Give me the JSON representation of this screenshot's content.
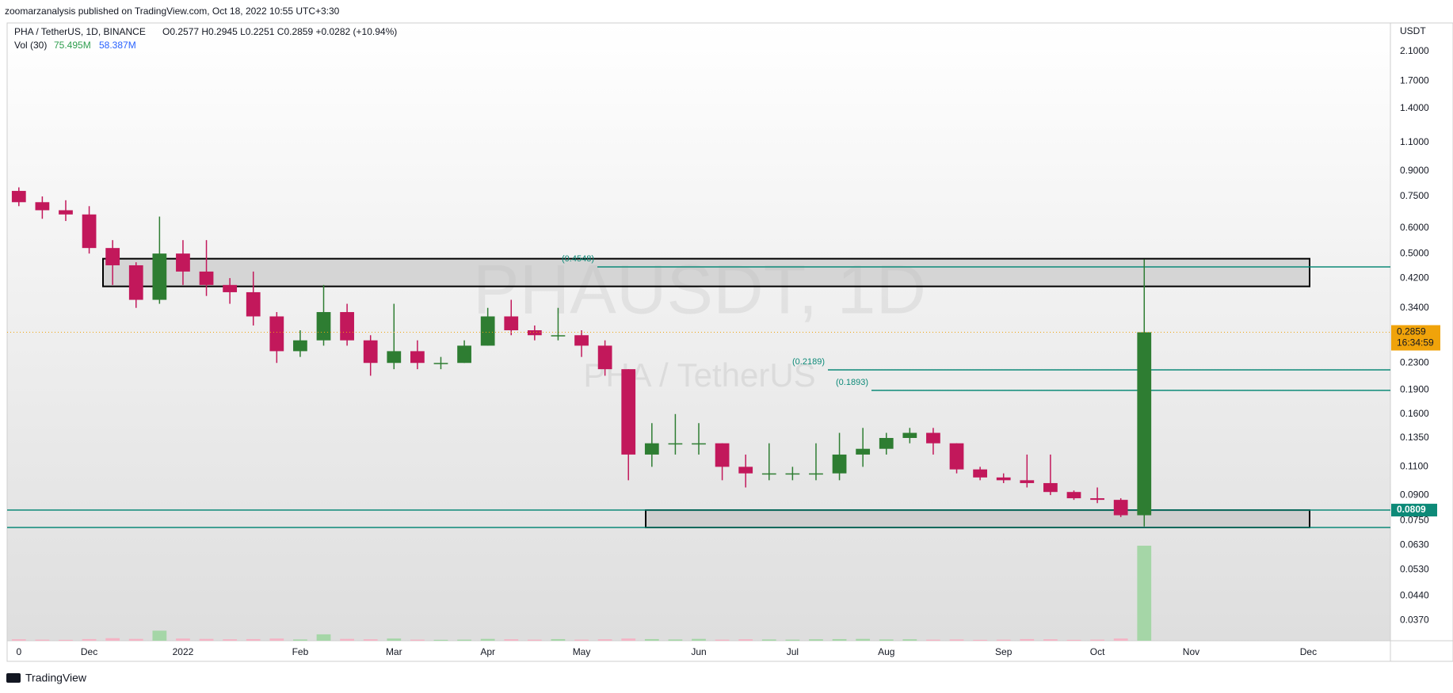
{
  "header": {
    "publisher": "zoomarzanalysis published on TradingView.com, Oct 18, 2022 10:55 UTC+3:30"
  },
  "footer": {
    "brand": "TradingView"
  },
  "chart_data": {
    "type": "candlestick",
    "legend": {
      "symbol": "PHA / TetherUS, 1D, BINANCE",
      "ohlc": "O0.2577 H0.2945 L0.2251 C0.2859 +0.0282 (+10.94%)"
    },
    "volume_legend": {
      "name": "Vol (30)",
      "volume": "75.495M",
      "average": "58.387M"
    },
    "watermark": {
      "symbol": "PHAUSDT, 1D",
      "name": "PHA / TetherUS"
    },
    "axis_unit": "USDT",
    "countdown": "16:34:59",
    "log_scale": true,
    "grid": false,
    "up_color": "#2e7d32",
    "down_color": "#c2185b",
    "volume_up_color": "#a5d6a7",
    "volume_down_color": "#f4b3c4",
    "level_color": "#0d8a78",
    "last_price_color": "#f0a30a",
    "categories": [
      "0",
      null,
      null,
      "Dec",
      null,
      null,
      null,
      "2022",
      null,
      null,
      null,
      null,
      "Feb",
      null,
      null,
      null,
      "Mar",
      null,
      null,
      null,
      "Apr",
      null,
      null,
      null,
      "May",
      null,
      null,
      null,
      null,
      "Jun",
      null,
      null,
      null,
      "Jul",
      null,
      null,
      null,
      "Aug",
      null,
      null,
      null,
      null,
      "Sep",
      null,
      null,
      null,
      "Oct",
      null,
      null,
      null,
      "Nov",
      null,
      null,
      null,
      null,
      "Dec",
      null,
      null,
      null
    ],
    "open": [
      0.78,
      0.72,
      0.68,
      0.66,
      0.52,
      0.46,
      0.36,
      0.5,
      0.44,
      0.4,
      0.38,
      0.32,
      0.25,
      0.27,
      0.33,
      0.27,
      0.23,
      0.25,
      0.23,
      0.23,
      0.26,
      0.32,
      0.29,
      0.28,
      0.28,
      0.26,
      0.22,
      0.12,
      0.13,
      0.13,
      0.13,
      0.11,
      0.105,
      0.105,
      0.105,
      0.105,
      0.12,
      0.125,
      0.135,
      0.14,
      0.13,
      0.108,
      0.102,
      0.1,
      0.098,
      0.092,
      0.088,
      0.087,
      0.078,
      null,
      null,
      null,
      null,
      null,
      null,
      null,
      null,
      null,
      null
    ],
    "high": [
      0.8,
      0.75,
      0.73,
      0.7,
      0.55,
      0.47,
      0.65,
      0.55,
      0.55,
      0.42,
      0.44,
      0.33,
      0.29,
      0.4,
      0.35,
      0.28,
      0.35,
      0.27,
      0.24,
      0.27,
      0.34,
      0.36,
      0.3,
      0.34,
      0.29,
      0.27,
      0.22,
      0.15,
      0.16,
      0.15,
      0.13,
      0.12,
      0.13,
      0.11,
      0.13,
      0.14,
      0.145,
      0.14,
      0.145,
      0.145,
      0.13,
      0.11,
      0.105,
      0.12,
      0.12,
      0.093,
      0.095,
      0.088,
      0.48,
      null,
      null,
      null,
      null,
      null,
      null,
      null,
      null,
      null,
      null
    ],
    "low": [
      0.7,
      0.64,
      0.63,
      0.5,
      0.4,
      0.34,
      0.35,
      0.4,
      0.37,
      0.35,
      0.3,
      0.23,
      0.24,
      0.26,
      0.26,
      0.21,
      0.22,
      0.22,
      0.22,
      0.23,
      0.26,
      0.28,
      0.27,
      0.27,
      0.24,
      0.21,
      0.1,
      0.11,
      0.12,
      0.12,
      0.1,
      0.095,
      0.1,
      0.1,
      0.1,
      0.1,
      0.11,
      0.12,
      0.13,
      0.12,
      0.105,
      0.1,
      0.098,
      0.095,
      0.09,
      0.087,
      0.085,
      0.077,
      0.072,
      null,
      null,
      null,
      null,
      null,
      null,
      null,
      null,
      null,
      null
    ],
    "close": [
      0.72,
      0.68,
      0.66,
      0.52,
      0.46,
      0.36,
      0.5,
      0.44,
      0.4,
      0.38,
      0.32,
      0.25,
      0.27,
      0.33,
      0.27,
      0.23,
      0.25,
      0.23,
      0.23,
      0.26,
      0.32,
      0.29,
      0.28,
      0.28,
      0.26,
      0.22,
      0.12,
      0.13,
      0.13,
      0.13,
      0.11,
      0.105,
      0.105,
      0.105,
      0.105,
      0.12,
      0.125,
      0.135,
      0.14,
      0.13,
      0.108,
      0.102,
      0.1,
      0.098,
      0.092,
      0.088,
      0.087,
      0.078,
      0.2859,
      null,
      null,
      null,
      null,
      null,
      null,
      null,
      null,
      null,
      null
    ],
    "volume": [
      8,
      6,
      5,
      9,
      14,
      10,
      55,
      12,
      10,
      8,
      9,
      12,
      7,
      35,
      10,
      8,
      12,
      6,
      5,
      6,
      10,
      8,
      6,
      9,
      6,
      8,
      12,
      9,
      7,
      10,
      6,
      8,
      7,
      6,
      8,
      9,
      10,
      7,
      8,
      6,
      7,
      5,
      6,
      9,
      8,
      5,
      6,
      12,
      520,
      null,
      null,
      null,
      null,
      null,
      null,
      null,
      null,
      null,
      null
    ],
    "ylim": [
      0.032,
      2.57
    ],
    "yticks": [
      {
        "value": 2.1,
        "label": "2.1000"
      },
      {
        "value": 1.7,
        "label": "1.7000"
      },
      {
        "value": 1.4,
        "label": "1.4000"
      },
      {
        "value": 1.1,
        "label": "1.1000"
      },
      {
        "value": 0.9,
        "label": "0.9000"
      },
      {
        "value": 0.75,
        "label": "0.7500"
      },
      {
        "value": 0.6,
        "label": "0.6000"
      },
      {
        "value": 0.5,
        "label": "0.5000"
      },
      {
        "value": 0.42,
        "label": "0.4200"
      },
      {
        "value": 0.34,
        "label": "0.3400"
      },
      {
        "value": 0.23,
        "label": "0.2300"
      },
      {
        "value": 0.19,
        "label": "0.1900"
      },
      {
        "value": 0.16,
        "label": "0.1600"
      },
      {
        "value": 0.135,
        "label": "0.1350"
      },
      {
        "value": 0.11,
        "label": "0.1100"
      },
      {
        "value": 0.09,
        "label": "0.0900"
      },
      {
        "value": 0.075,
        "label": "0.0750"
      },
      {
        "value": 0.063,
        "label": "0.0630"
      },
      {
        "value": 0.053,
        "label": "0.0530"
      },
      {
        "value": 0.044,
        "label": "0.0440"
      },
      {
        "value": 0.037,
        "label": "0.0370"
      }
    ],
    "levels": [
      {
        "value": 0.4548,
        "label": "(0.4548)"
      },
      {
        "value": 0.2189,
        "label": "(0.2189)"
      },
      {
        "value": 0.1893,
        "label": "(0.1893)"
      },
      {
        "value": 0.0809,
        "label": "0.0809"
      },
      0.0715
    ],
    "zones": [
      {
        "low": 0.396,
        "high": 0.482
      },
      {
        "low": 0.0715,
        "high": 0.0809
      }
    ]
  }
}
